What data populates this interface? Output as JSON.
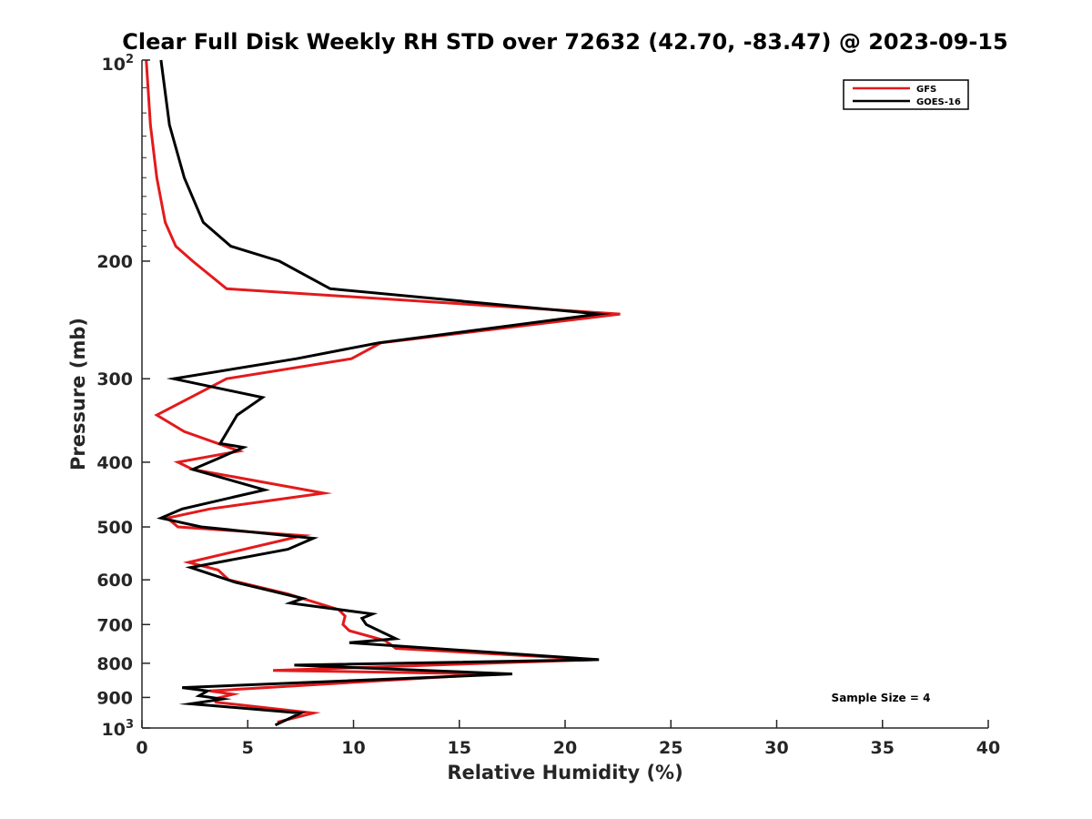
{
  "chart_data": {
    "type": "line",
    "title": "Clear Full Disk Weekly RH STD over 72632 (42.70, -83.47) @ 2023-09-15",
    "xlabel": "Relative Humidity (%)",
    "ylabel": "Pressure (mb)",
    "xlim": [
      0,
      40
    ],
    "ylim": [
      100,
      1000
    ],
    "y_scale": "log",
    "y_reversed": true,
    "grid": false,
    "legend_position": "top-right",
    "x_ticks": [
      0,
      5,
      10,
      15,
      20,
      25,
      30,
      35,
      40
    ],
    "x_tick_labels": [
      "0",
      "5",
      "10",
      "15",
      "20",
      "25",
      "30",
      "35",
      "40"
    ],
    "y_ticks": [
      200,
      300,
      400,
      500,
      600,
      700,
      800,
      900
    ],
    "y_tick_labels": [
      "200",
      "300",
      "400",
      "500",
      "600",
      "700",
      "800",
      "900"
    ],
    "y_tick_top": {
      "base": "10",
      "exp": "2"
    },
    "y_tick_bottom": {
      "base": "10",
      "exp": "3"
    },
    "annotation": "Sample Size = 4",
    "series": [
      {
        "name": "GFS",
        "color": "#e31a1c",
        "points": [
          [
            0.2,
            100
          ],
          [
            0.4,
            125
          ],
          [
            0.7,
            150
          ],
          [
            1.1,
            175
          ],
          [
            1.6,
            190
          ],
          [
            2.4,
            200
          ],
          [
            4.0,
            220
          ],
          [
            22.6,
            240
          ],
          [
            11.3,
            265
          ],
          [
            9.9,
            280
          ],
          [
            4.0,
            300
          ],
          [
            0.7,
            340
          ],
          [
            2.0,
            360
          ],
          [
            4.6,
            385
          ],
          [
            1.7,
            400
          ],
          [
            2.4,
            410
          ],
          [
            8.6,
            445
          ],
          [
            3.2,
            470
          ],
          [
            1.2,
            485
          ],
          [
            1.7,
            500
          ],
          [
            7.6,
            515
          ],
          [
            2.2,
            565
          ],
          [
            3.6,
            580
          ],
          [
            4.1,
            600
          ],
          [
            6.9,
            630
          ],
          [
            9.3,
            665
          ],
          [
            9.6,
            680
          ],
          [
            9.5,
            700
          ],
          [
            9.8,
            715
          ],
          [
            11.5,
            740
          ],
          [
            12.0,
            760
          ],
          [
            21.5,
            790
          ],
          [
            6.2,
            820
          ],
          [
            16.6,
            830
          ],
          [
            3.2,
            880
          ],
          [
            4.3,
            890
          ],
          [
            3.4,
            905
          ],
          [
            3.5,
            915
          ],
          [
            8.1,
            950
          ],
          [
            6.4,
            980
          ]
        ]
      },
      {
        "name": "GOES-16",
        "color": "#000000",
        "points": [
          [
            0.9,
            100
          ],
          [
            1.3,
            125
          ],
          [
            2.0,
            150
          ],
          [
            2.9,
            175
          ],
          [
            4.2,
            190
          ],
          [
            6.5,
            200
          ],
          [
            8.9,
            220
          ],
          [
            21.6,
            240
          ],
          [
            11.2,
            265
          ],
          [
            7.3,
            280
          ],
          [
            1.5,
            300
          ],
          [
            5.7,
            320
          ],
          [
            4.5,
            340
          ],
          [
            3.7,
            375
          ],
          [
            4.8,
            380
          ],
          [
            3.6,
            395
          ],
          [
            2.4,
            410
          ],
          [
            5.8,
            440
          ],
          [
            1.9,
            470
          ],
          [
            0.9,
            485
          ],
          [
            2.8,
            500
          ],
          [
            8.1,
            520
          ],
          [
            6.9,
            540
          ],
          [
            2.3,
            575
          ],
          [
            4.4,
            605
          ],
          [
            7.6,
            640
          ],
          [
            7.0,
            650
          ],
          [
            10.9,
            675
          ],
          [
            10.4,
            685
          ],
          [
            10.6,
            700
          ],
          [
            12.0,
            735
          ],
          [
            9.8,
            745
          ],
          [
            21.6,
            790
          ],
          [
            7.2,
            805
          ],
          [
            17.5,
            830
          ],
          [
            1.9,
            870
          ],
          [
            3.1,
            880
          ],
          [
            2.7,
            895
          ],
          [
            3.8,
            905
          ],
          [
            2.3,
            920
          ],
          [
            7.5,
            950
          ],
          [
            6.3,
            990
          ]
        ]
      }
    ]
  }
}
